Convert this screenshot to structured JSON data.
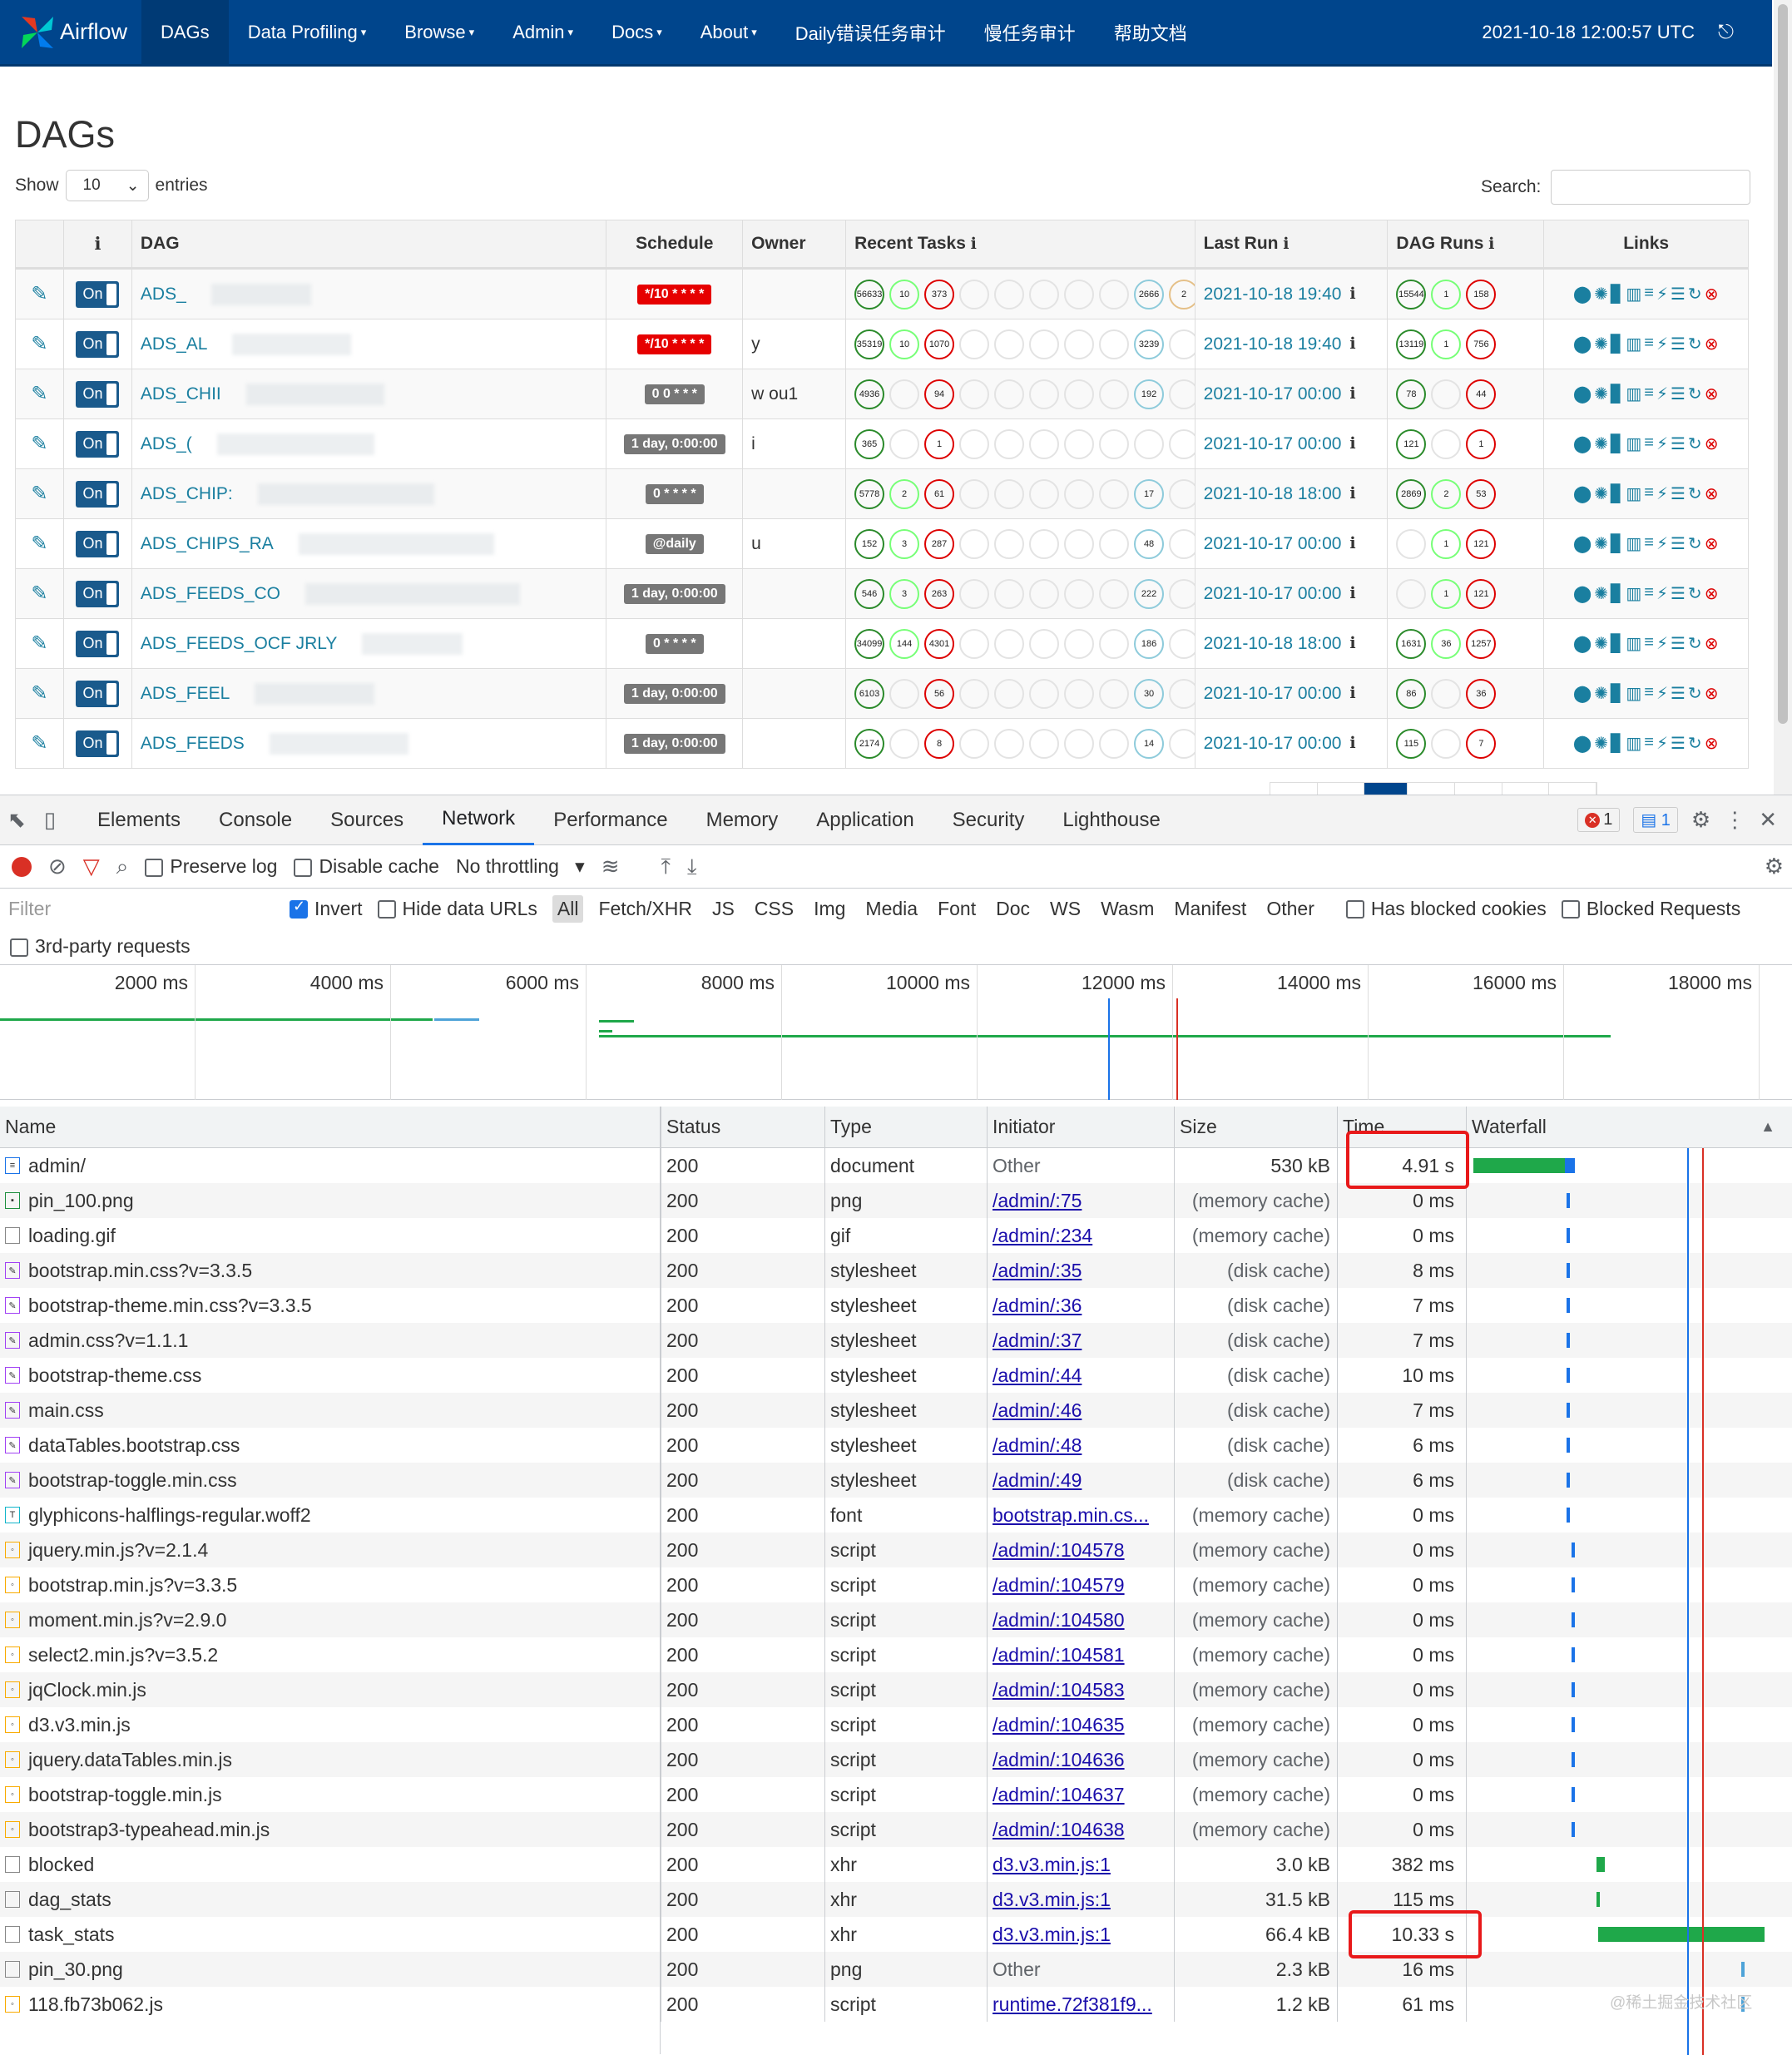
{
  "navbar": {
    "brand": "Airflow",
    "items": [
      {
        "label": "DAGs",
        "active": true,
        "caret": false
      },
      {
        "label": "Data Profiling",
        "caret": true
      },
      {
        "label": "Browse",
        "caret": true
      },
      {
        "label": "Admin",
        "caret": true
      },
      {
        "label": "Docs",
        "caret": true
      },
      {
        "label": "About",
        "caret": true
      },
      {
        "label": "Daily错误任务审计",
        "caret": false
      },
      {
        "label": "慢任务审计",
        "caret": false
      },
      {
        "label": "帮助文档",
        "caret": false
      }
    ],
    "time": "2021-10-18 12:00:57 UTC",
    "logout_icon": "sign-out-icon"
  },
  "page": {
    "title": "DAGs",
    "show_label": "Show",
    "entries_value": "10",
    "entries_label": "entries",
    "search_label": "Search:"
  },
  "dag_table": {
    "headers": {
      "info": "ℹ",
      "dag": "DAG",
      "schedule": "Schedule",
      "owner": "Owner",
      "recent_tasks": "Recent Tasks",
      "last_run": "Last Run",
      "dag_runs": "DAG Runs",
      "links": "Links"
    },
    "toggle_label": "On",
    "rows": [
      {
        "dag": "ADS_",
        "schedule": "*/10 * * * *",
        "sched_color": "red",
        "owner": "",
        "tasks": [
          "56633",
          "10",
          "373",
          "",
          "",
          "",
          "",
          "",
          "2666",
          "2"
        ],
        "last_run": "2021-10-18 19:40",
        "runs": [
          "15544",
          "1",
          "158"
        ]
      },
      {
        "dag": "ADS_AL",
        "schedule": "*/10 * * * *",
        "sched_color": "red",
        "owner": "y",
        "tasks": [
          "35319",
          "10",
          "1070",
          "",
          "",
          "",
          "",
          "",
          "3239",
          ""
        ],
        "last_run": "2021-10-18 19:40",
        "runs": [
          "13119",
          "1",
          "756"
        ]
      },
      {
        "dag": "ADS_CHII",
        "schedule": "0 0 * * *",
        "sched_color": "gray",
        "owner": "w      ou1",
        "tasks": [
          "4936",
          "",
          "94",
          "",
          "",
          "",
          "",
          "",
          "192",
          ""
        ],
        "last_run": "2021-10-17 00:00",
        "runs": [
          "78",
          "",
          "44"
        ]
      },
      {
        "dag": "ADS_(",
        "schedule": "1 day, 0:00:00",
        "sched_color": "gray",
        "owner": "i",
        "tasks": [
          "365",
          "",
          "1",
          "",
          "",
          "",
          "",
          "",
          "",
          ""
        ],
        "last_run": "2021-10-17 00:00",
        "runs": [
          "121",
          "",
          "1"
        ]
      },
      {
        "dag": "ADS_CHIP:",
        "schedule": "0 * * * *",
        "sched_color": "gray",
        "owner": "",
        "tasks": [
          "5778",
          "2",
          "61",
          "",
          "",
          "",
          "",
          "",
          "17",
          ""
        ],
        "last_run": "2021-10-18 18:00",
        "runs": [
          "2869",
          "2",
          "53"
        ]
      },
      {
        "dag": "ADS_CHIPS_RA",
        "schedule": "@daily",
        "sched_color": "gray",
        "owner": "u",
        "tasks": [
          "152",
          "3",
          "287",
          "",
          "",
          "",
          "",
          "",
          "48",
          ""
        ],
        "last_run": "2021-10-17 00:00",
        "runs": [
          "",
          "1",
          "121"
        ]
      },
      {
        "dag": "ADS_FEEDS_CO",
        "schedule": "1 day, 0:00:00",
        "sched_color": "gray",
        "owner": "",
        "tasks": [
          "546",
          "3",
          "263",
          "",
          "",
          "",
          "",
          "",
          "222",
          ""
        ],
        "last_run": "2021-10-17 00:00",
        "runs": [
          "",
          "1",
          "121"
        ]
      },
      {
        "dag": "ADS_FEEDS_OCF                    JRLY",
        "schedule": "0 * * * *",
        "sched_color": "gray",
        "owner": "",
        "tasks": [
          "34099",
          "144",
          "4301",
          "",
          "",
          "",
          "",
          "",
          "186",
          ""
        ],
        "last_run": "2021-10-18 18:00",
        "runs": [
          "1631",
          "36",
          "1257"
        ]
      },
      {
        "dag": "ADS_FEEL",
        "schedule": "1 day, 0:00:00",
        "sched_color": "gray",
        "owner": "",
        "tasks": [
          "6103",
          "",
          "56",
          "",
          "",
          "",
          "",
          "",
          "30",
          ""
        ],
        "last_run": "2021-10-17 00:00",
        "runs": [
          "86",
          "",
          "36"
        ]
      },
      {
        "dag": "ADS_FEEDS",
        "schedule": "1 day, 0:00:00",
        "sched_color": "gray",
        "owner": "",
        "tasks": [
          "2174",
          "",
          "8",
          "",
          "",
          "",
          "",
          "",
          "14",
          ""
        ],
        "last_run": "2021-10-17 00:00",
        "runs": [
          "115",
          "",
          "7"
        ]
      }
    ],
    "task_states": [
      "success",
      "running",
      "failed",
      "upstream",
      "skipped",
      "retry",
      "queued",
      "none",
      "queued",
      "retry"
    ],
    "run_states": [
      "success",
      "running",
      "failed"
    ],
    "links_icons": [
      "pin-icon",
      "tree-icon",
      "chart-icon",
      "bars-icon",
      "gantt-icon",
      "flash-icon",
      "list-icon",
      "refresh-icon",
      "remove-icon"
    ]
  },
  "devtools": {
    "tabs": [
      "Elements",
      "Console",
      "Sources",
      "Network",
      "Performance",
      "Memory",
      "Application",
      "Security",
      "Lighthouse"
    ],
    "active_tab": "Network",
    "errors": "1",
    "messages": "1",
    "toolbar": {
      "preserve_log": "Preserve log",
      "disable_cache": "Disable cache",
      "throttling": "No throttling"
    },
    "filter": {
      "placeholder": "Filter",
      "invert": "Invert",
      "hide_data_urls": "Hide data URLs",
      "types": [
        "All",
        "Fetch/XHR",
        "JS",
        "CSS",
        "Img",
        "Media",
        "Font",
        "Doc",
        "WS",
        "Wasm",
        "Manifest",
        "Other"
      ],
      "has_blocked_cookies": "Has blocked cookies",
      "blocked_requests": "Blocked Requests",
      "third_party": "3rd-party requests"
    },
    "overview_ticks": [
      "2000 ms",
      "4000 ms",
      "6000 ms",
      "8000 ms",
      "10000 ms",
      "12000 ms",
      "14000 ms",
      "16000 ms",
      "18000 ms"
    ],
    "columns": {
      "name": "Name",
      "status": "Status",
      "type": "Type",
      "initiator": "Initiator",
      "size": "Size",
      "time": "Time",
      "waterfall": "Waterfall"
    },
    "requests": [
      {
        "name": "admin/",
        "icon": "doc",
        "status": "200",
        "type": "document",
        "initiator": "Other",
        "init_link": false,
        "size": "530 kB",
        "time": "4.91 s"
      },
      {
        "name": "pin_100.png",
        "icon": "img",
        "status": "200",
        "type": "png",
        "initiator": "/admin/:75",
        "init_link": true,
        "size": "(memory cache)",
        "time": "0 ms"
      },
      {
        "name": "loading.gif",
        "icon": "blank",
        "status": "200",
        "type": "gif",
        "initiator": "/admin/:234",
        "init_link": true,
        "size": "(memory cache)",
        "time": "0 ms"
      },
      {
        "name": "bootstrap.min.css?v=3.3.5",
        "icon": "css",
        "status": "200",
        "type": "stylesheet",
        "initiator": "/admin/:35",
        "init_link": true,
        "size": "(disk cache)",
        "time": "8 ms"
      },
      {
        "name": "bootstrap-theme.min.css?v=3.3.5",
        "icon": "css",
        "status": "200",
        "type": "stylesheet",
        "initiator": "/admin/:36",
        "init_link": true,
        "size": "(disk cache)",
        "time": "7 ms"
      },
      {
        "name": "admin.css?v=1.1.1",
        "icon": "css",
        "status": "200",
        "type": "stylesheet",
        "initiator": "/admin/:37",
        "init_link": true,
        "size": "(disk cache)",
        "time": "7 ms"
      },
      {
        "name": "bootstrap-theme.css",
        "icon": "css",
        "status": "200",
        "type": "stylesheet",
        "initiator": "/admin/:44",
        "init_link": true,
        "size": "(disk cache)",
        "time": "10 ms"
      },
      {
        "name": "main.css",
        "icon": "css",
        "status": "200",
        "type": "stylesheet",
        "initiator": "/admin/:46",
        "init_link": true,
        "size": "(disk cache)",
        "time": "7 ms"
      },
      {
        "name": "dataTables.bootstrap.css",
        "icon": "css",
        "status": "200",
        "type": "stylesheet",
        "initiator": "/admin/:48",
        "init_link": true,
        "size": "(disk cache)",
        "time": "6 ms"
      },
      {
        "name": "bootstrap-toggle.min.css",
        "icon": "css",
        "status": "200",
        "type": "stylesheet",
        "initiator": "/admin/:49",
        "init_link": true,
        "size": "(disk cache)",
        "time": "6 ms"
      },
      {
        "name": "glyphicons-halflings-regular.woff2",
        "icon": "font",
        "status": "200",
        "type": "font",
        "initiator": "bootstrap.min.cs...",
        "init_link": true,
        "size": "(memory cache)",
        "time": "0 ms"
      },
      {
        "name": "jquery.min.js?v=2.1.4",
        "icon": "js",
        "status": "200",
        "type": "script",
        "initiator": "/admin/:104578",
        "init_link": true,
        "size": "(memory cache)",
        "time": "0 ms"
      },
      {
        "name": "bootstrap.min.js?v=3.3.5",
        "icon": "js",
        "status": "200",
        "type": "script",
        "initiator": "/admin/:104579",
        "init_link": true,
        "size": "(memory cache)",
        "time": "0 ms"
      },
      {
        "name": "moment.min.js?v=2.9.0",
        "icon": "js",
        "status": "200",
        "type": "script",
        "initiator": "/admin/:104580",
        "init_link": true,
        "size": "(memory cache)",
        "time": "0 ms"
      },
      {
        "name": "select2.min.js?v=3.5.2",
        "icon": "js",
        "status": "200",
        "type": "script",
        "initiator": "/admin/:104581",
        "init_link": true,
        "size": "(memory cache)",
        "time": "0 ms"
      },
      {
        "name": "jqClock.min.js",
        "icon": "js",
        "status": "200",
        "type": "script",
        "initiator": "/admin/:104583",
        "init_link": true,
        "size": "(memory cache)",
        "time": "0 ms"
      },
      {
        "name": "d3.v3.min.js",
        "icon": "js",
        "status": "200",
        "type": "script",
        "initiator": "/admin/:104635",
        "init_link": true,
        "size": "(memory cache)",
        "time": "0 ms"
      },
      {
        "name": "jquery.dataTables.min.js",
        "icon": "js",
        "status": "200",
        "type": "script",
        "initiator": "/admin/:104636",
        "init_link": true,
        "size": "(memory cache)",
        "time": "0 ms"
      },
      {
        "name": "bootstrap-toggle.min.js",
        "icon": "js",
        "status": "200",
        "type": "script",
        "initiator": "/admin/:104637",
        "init_link": true,
        "size": "(memory cache)",
        "time": "0 ms"
      },
      {
        "name": "bootstrap3-typeahead.min.js",
        "icon": "js",
        "status": "200",
        "type": "script",
        "initiator": "/admin/:104638",
        "init_link": true,
        "size": "(memory cache)",
        "time": "0 ms"
      },
      {
        "name": "blocked",
        "icon": "blank",
        "status": "200",
        "type": "xhr",
        "initiator": "d3.v3.min.js:1",
        "init_link": true,
        "size": "3.0 kB",
        "time": "382 ms"
      },
      {
        "name": "dag_stats",
        "icon": "blank",
        "status": "200",
        "type": "xhr",
        "initiator": "d3.v3.min.js:1",
        "init_link": true,
        "size": "31.5 kB",
        "time": "115 ms"
      },
      {
        "name": "task_stats",
        "icon": "blank",
        "status": "200",
        "type": "xhr",
        "initiator": "d3.v3.min.js:1",
        "init_link": true,
        "size": "66.4 kB",
        "time": "10.33 s"
      },
      {
        "name": "pin_30.png",
        "icon": "blank",
        "status": "200",
        "type": "png",
        "initiator": "Other",
        "init_link": false,
        "size": "2.3 kB",
        "time": "16 ms"
      },
      {
        "name": "118.fb73b062.js",
        "icon": "js",
        "status": "200",
        "type": "script",
        "initiator": "runtime.72f381f9...",
        "init_link": true,
        "size": "1.2 kB",
        "time": "61 ms"
      }
    ]
  },
  "watermark": "@稀土掘金技术社区",
  "colors": {
    "navbar": "#00458c",
    "link": "#1a7fa0",
    "highlight": "#e8191a",
    "wf_green": "#1fa84a",
    "wf_blue": "#1a73e8"
  }
}
